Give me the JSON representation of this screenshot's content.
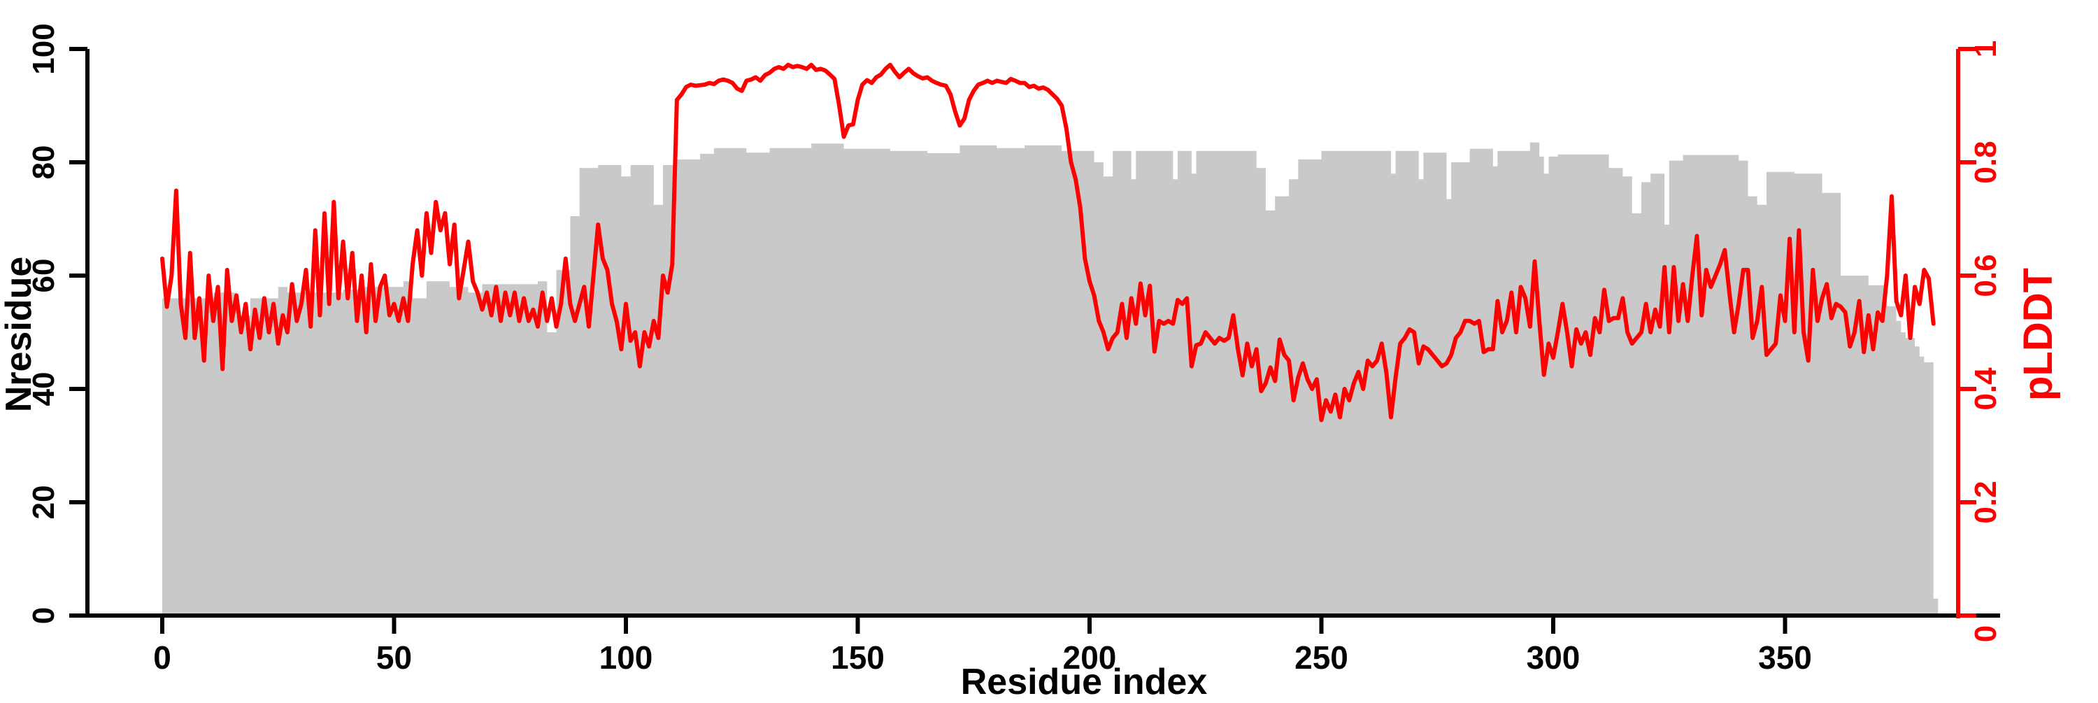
{
  "figure": {
    "background": "#ffffff",
    "bar_color": "#c9c9c9",
    "line_color": "#ff0000",
    "axis_color": "#000000"
  },
  "chart_data": {
    "type": "line",
    "description": "Per-residue pLDDT line (red, right axis) over gray step-area of Nresidue (left axis)",
    "x_axis": {
      "label": "Residue index",
      "range": [
        0,
        387
      ],
      "ticks": [
        0,
        50,
        100,
        150,
        200,
        250,
        300,
        350
      ],
      "tick_labels": [
        "0",
        "50",
        "100",
        "150",
        "200",
        "250",
        "300",
        "350"
      ],
      "grid": false
    },
    "y_axis_left": {
      "label": "Nresidue",
      "range": [
        0,
        100
      ],
      "ticks": [
        0,
        20,
        40,
        60,
        80,
        100
      ],
      "tick_labels": [
        "0",
        "20",
        "40",
        "60",
        "80",
        "100"
      ]
    },
    "y_axis_right": {
      "label": "pLDDT",
      "range": [
        0,
        1
      ],
      "ticks": [
        0,
        0.2,
        0.4,
        0.6,
        0.8,
        1
      ],
      "tick_labels": [
        "0",
        "0.2",
        "0.4",
        "0.6",
        "0.8",
        "1"
      ]
    },
    "series": [
      {
        "name": "Nresidue",
        "type": "step-area",
        "color": "#c9c9c9",
        "segments": [
          [
            0,
            11,
            56
          ],
          [
            11,
            16,
            57
          ],
          [
            16,
            19,
            53
          ],
          [
            19,
            25,
            56
          ],
          [
            25,
            27,
            58
          ],
          [
            27,
            39,
            57
          ],
          [
            39,
            43,
            57.5
          ],
          [
            43,
            52,
            58
          ],
          [
            52,
            54,
            59
          ],
          [
            54,
            57,
            56
          ],
          [
            57,
            62,
            59
          ],
          [
            62,
            66,
            58
          ],
          [
            66,
            69,
            57
          ],
          [
            69,
            81,
            58.5
          ],
          [
            81,
            83,
            59
          ],
          [
            83,
            85,
            50
          ],
          [
            85,
            88,
            61
          ],
          [
            88,
            90,
            70.5
          ],
          [
            90,
            94,
            79
          ],
          [
            94,
            99,
            79.5
          ],
          [
            99,
            101,
            77.5
          ],
          [
            101,
            106,
            79.5
          ],
          [
            106,
            108,
            72.5
          ],
          [
            108,
            111,
            79.5
          ],
          [
            111,
            116,
            80.5
          ],
          [
            116,
            119,
            81.5
          ],
          [
            119,
            126,
            82.5
          ],
          [
            126,
            131,
            81.7
          ],
          [
            131,
            140,
            82.5
          ],
          [
            140,
            147,
            83.3
          ],
          [
            147,
            157,
            82.4
          ],
          [
            157,
            165,
            82
          ],
          [
            165,
            172,
            81.6
          ],
          [
            172,
            180,
            83
          ],
          [
            180,
            186,
            82.5
          ],
          [
            186,
            194,
            83
          ],
          [
            194,
            201,
            82
          ],
          [
            201,
            203,
            80
          ],
          [
            203,
            205,
            77.5
          ],
          [
            205,
            209,
            82
          ],
          [
            209,
            210,
            77
          ],
          [
            210,
            218,
            82
          ],
          [
            218,
            219,
            77
          ],
          [
            219,
            222,
            82
          ],
          [
            222,
            223,
            78
          ],
          [
            223,
            236,
            82
          ],
          [
            236,
            238,
            79
          ],
          [
            238,
            240,
            71.5
          ],
          [
            240,
            243,
            74
          ],
          [
            243,
            245,
            77
          ],
          [
            245,
            250,
            80.5
          ],
          [
            250,
            265,
            82
          ],
          [
            265,
            266,
            78
          ],
          [
            266,
            271,
            82
          ],
          [
            271,
            272,
            77
          ],
          [
            272,
            277,
            81.7
          ],
          [
            277,
            278,
            73.5
          ],
          [
            278,
            282,
            80
          ],
          [
            282,
            287,
            82.4
          ],
          [
            287,
            288,
            79.3
          ],
          [
            288,
            295,
            82
          ],
          [
            295,
            297,
            83.5
          ],
          [
            297,
            298,
            81
          ],
          [
            298,
            299,
            78
          ],
          [
            299,
            301,
            81
          ],
          [
            301,
            312,
            81.4
          ],
          [
            312,
            315,
            79
          ],
          [
            315,
            317,
            77.5
          ],
          [
            317,
            319,
            71
          ],
          [
            319,
            321,
            76.5
          ],
          [
            321,
            324,
            78
          ],
          [
            324,
            325,
            69
          ],
          [
            325,
            328,
            80.3
          ],
          [
            328,
            340,
            81.3
          ],
          [
            340,
            342,
            80.3
          ],
          [
            342,
            344,
            74
          ],
          [
            344,
            346,
            72.5
          ],
          [
            346,
            352,
            78.3
          ],
          [
            352,
            358,
            78
          ],
          [
            358,
            362,
            74.6
          ],
          [
            362,
            368,
            60
          ],
          [
            368,
            372,
            58.3
          ],
          [
            372,
            374,
            54.6
          ],
          [
            374,
            375,
            52
          ],
          [
            375,
            376,
            50
          ],
          [
            376,
            378,
            49
          ],
          [
            378,
            379,
            47.5
          ],
          [
            379,
            380,
            45.7
          ],
          [
            380,
            382,
            44.7
          ],
          [
            382,
            383,
            3
          ]
        ]
      },
      {
        "name": "pLDDT",
        "type": "line",
        "color": "#ff0000",
        "x_start": 0,
        "x_step": 1,
        "values": [
          0.63,
          0.545,
          0.6,
          0.75,
          0.55,
          0.49,
          0.64,
          0.49,
          0.56,
          0.45,
          0.6,
          0.52,
          0.58,
          0.435,
          0.61,
          0.52,
          0.565,
          0.5,
          0.55,
          0.47,
          0.54,
          0.49,
          0.56,
          0.5,
          0.55,
          0.48,
          0.53,
          0.5,
          0.585,
          0.52,
          0.55,
          0.61,
          0.51,
          0.68,
          0.53,
          0.71,
          0.55,
          0.73,
          0.56,
          0.66,
          0.56,
          0.64,
          0.52,
          0.6,
          0.5,
          0.62,
          0.52,
          0.58,
          0.6,
          0.53,
          0.55,
          0.52,
          0.56,
          0.52,
          0.62,
          0.68,
          0.6,
          0.71,
          0.64,
          0.73,
          0.68,
          0.71,
          0.62,
          0.69,
          0.56,
          0.61,
          0.66,
          0.59,
          0.57,
          0.54,
          0.57,
          0.53,
          0.58,
          0.52,
          0.57,
          0.53,
          0.57,
          0.52,
          0.56,
          0.52,
          0.54,
          0.51,
          0.57,
          0.52,
          0.56,
          0.51,
          0.55,
          0.63,
          0.55,
          0.52,
          0.55,
          0.58,
          0.51,
          0.6,
          0.69,
          0.63,
          0.61,
          0.55,
          0.52,
          0.47,
          0.55,
          0.485,
          0.5,
          0.44,
          0.5,
          0.475,
          0.52,
          0.49,
          0.6,
          0.57,
          0.62,
          0.91,
          0.92,
          0.933,
          0.937,
          0.935,
          0.936,
          0.937,
          0.94,
          0.938,
          0.944,
          0.946,
          0.944,
          0.94,
          0.93,
          0.926,
          0.944,
          0.946,
          0.95,
          0.944,
          0.954,
          0.958,
          0.965,
          0.968,
          0.965,
          0.972,
          0.968,
          0.97,
          0.968,
          0.965,
          0.972,
          0.963,
          0.965,
          0.962,
          0.955,
          0.947,
          0.9,
          0.845,
          0.865,
          0.867,
          0.91,
          0.937,
          0.945,
          0.94,
          0.95,
          0.955,
          0.965,
          0.972,
          0.96,
          0.95,
          0.958,
          0.965,
          0.957,
          0.952,
          0.948,
          0.95,
          0.944,
          0.94,
          0.937,
          0.935,
          0.92,
          0.89,
          0.865,
          0.877,
          0.91,
          0.926,
          0.937,
          0.94,
          0.944,
          0.94,
          0.944,
          0.942,
          0.94,
          0.947,
          0.944,
          0.94,
          0.94,
          0.933,
          0.935,
          0.93,
          0.932,
          0.928,
          0.92,
          0.912,
          0.9,
          0.86,
          0.8,
          0.77,
          0.72,
          0.63,
          0.59,
          0.565,
          0.52,
          0.5,
          0.47,
          0.49,
          0.5,
          0.55,
          0.49,
          0.56,
          0.515,
          0.586,
          0.53,
          0.582,
          0.466,
          0.52,
          0.515,
          0.52,
          0.515,
          0.557,
          0.55,
          0.56,
          0.44,
          0.477,
          0.48,
          0.5,
          0.49,
          0.48,
          0.49,
          0.485,
          0.49,
          0.53,
          0.47,
          0.424,
          0.48,
          0.44,
          0.47,
          0.396,
          0.41,
          0.438,
          0.414,
          0.487,
          0.46,
          0.45,
          0.38,
          0.42,
          0.445,
          0.417,
          0.4,
          0.417,
          0.345,
          0.38,
          0.36,
          0.39,
          0.35,
          0.4,
          0.38,
          0.41,
          0.43,
          0.4,
          0.45,
          0.44,
          0.45,
          0.48,
          0.43,
          0.35,
          0.42,
          0.48,
          0.49,
          0.505,
          0.5,
          0.445,
          0.475,
          0.47,
          0.46,
          0.45,
          0.44,
          0.445,
          0.46,
          0.49,
          0.5,
          0.52,
          0.52,
          0.515,
          0.52,
          0.465,
          0.47,
          0.47,
          0.555,
          0.5,
          0.52,
          0.57,
          0.5,
          0.58,
          0.56,
          0.51,
          0.625,
          0.52,
          0.425,
          0.48,
          0.455,
          0.5,
          0.55,
          0.5,
          0.44,
          0.505,
          0.48,
          0.5,
          0.46,
          0.525,
          0.5,
          0.575,
          0.52,
          0.525,
          0.525,
          0.56,
          0.5,
          0.48,
          0.49,
          0.5,
          0.55,
          0.5,
          0.54,
          0.51,
          0.615,
          0.5,
          0.615,
          0.52,
          0.585,
          0.52,
          0.6,
          0.67,
          0.53,
          0.61,
          0.58,
          0.6,
          0.62,
          0.645,
          0.57,
          0.5,
          0.55,
          0.61,
          0.61,
          0.49,
          0.52,
          0.58,
          0.46,
          0.47,
          0.48,
          0.565,
          0.52,
          0.665,
          0.5,
          0.68,
          0.5,
          0.45,
          0.61,
          0.52,
          0.56,
          0.585,
          0.525,
          0.55,
          0.545,
          0.535,
          0.475,
          0.5,
          0.555,
          0.465,
          0.53,
          0.47,
          0.535,
          0.52,
          0.6,
          0.74,
          0.555,
          0.53,
          0.6,
          0.49,
          0.58,
          0.55,
          0.61,
          0.595,
          0.515
        ]
      }
    ],
    "legend": null,
    "title": ""
  }
}
